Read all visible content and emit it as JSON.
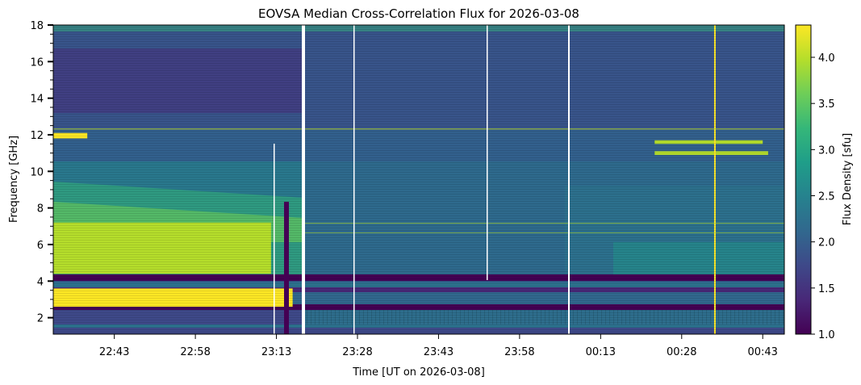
{
  "chart_data": {
    "type": "heatmap",
    "title": "EOVSA Median Cross-Correlation Flux for 2026-03-08",
    "xlabel": "Time [UT on 2026-03-08]",
    "ylabel": "Frequency [GHz]",
    "colorbar_label": "Flux Density [sfu]",
    "colormap": "viridis",
    "colormap_stops": [
      "#440154",
      "#482878",
      "#3e4989",
      "#31688e",
      "#26828e",
      "#1f9e89",
      "#35b779",
      "#6ece58",
      "#b5de2b",
      "#fde725"
    ],
    "x_ticks": [
      "22:43",
      "22:58",
      "23:13",
      "23:28",
      "23:43",
      "23:58",
      "00:13",
      "00:28",
      "00:43"
    ],
    "y_ticks": [
      "2",
      "4",
      "6",
      "8",
      "10",
      "12",
      "14",
      "16",
      "18"
    ],
    "colorbar_ticks": [
      "1.0",
      "1.5",
      "2.0",
      "2.5",
      "3.0",
      "3.5",
      "4.0"
    ],
    "ylim": [
      1.1,
      18
    ],
    "xlim_minutes_after_22_43": [
      -11.3,
      124
    ],
    "clim": [
      1.0,
      4.35
    ],
    "features": [
      {
        "label": "strong emission band",
        "freq": [
          2.6,
          3.6
        ],
        "time": [
          "22:31",
          "23:16"
        ],
        "flux": 4.3
      },
      {
        "label": "enhanced emission",
        "freq": [
          4.4,
          7.2
        ],
        "time": [
          "22:31",
          "23:12"
        ],
        "flux": 3.8
      },
      {
        "label": "emission near 12 GHz",
        "freq": [
          11.8,
          12.1
        ],
        "time": [
          "22:31",
          "22:38"
        ],
        "flux": 4.3
      },
      {
        "label": "emission band",
        "freq": [
          11.5,
          11.7
        ],
        "time": [
          "00:23",
          "00:43"
        ],
        "flux": 4.0
      },
      {
        "label": "emission band",
        "freq": [
          10.9,
          11.1
        ],
        "time": [
          "00:23",
          "00:44"
        ],
        "flux": 3.9
      },
      {
        "label": "spike",
        "freq": [
          1.1,
          18
        ],
        "time": [
          "00:34",
          "00:34"
        ],
        "flux": 4.3
      }
    ]
  }
}
